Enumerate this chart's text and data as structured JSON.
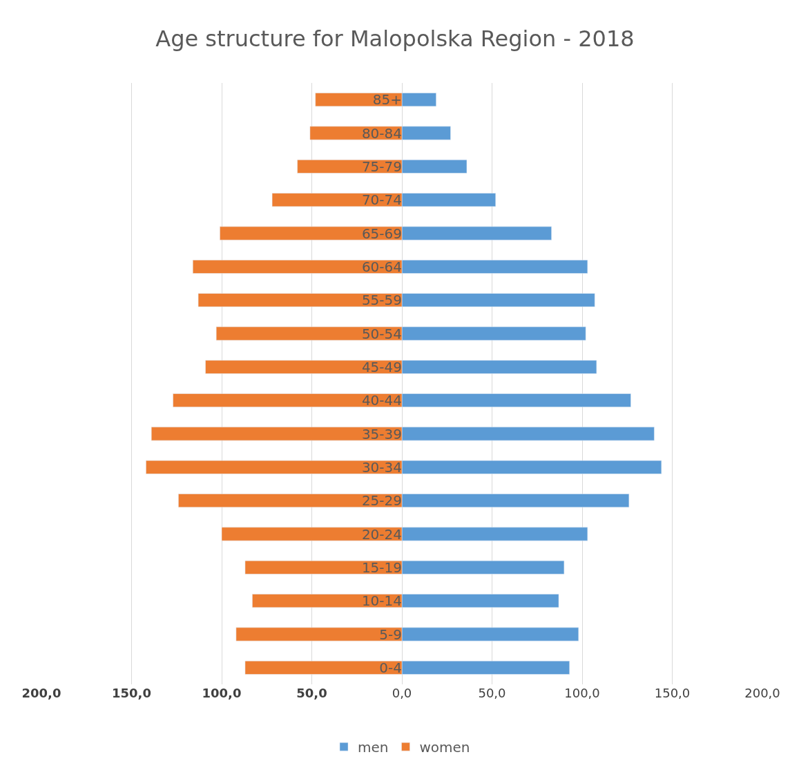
{
  "chart_data": {
    "type": "bar",
    "orientation": "horizontal",
    "title": "Age structure for Malopolska Region - 2018",
    "categories": [
      "85+",
      "80-84",
      "75-79",
      "70-74",
      "65-69",
      "60-64",
      "55-59",
      "50-54",
      "45-49",
      "40-44",
      "35-39",
      "30-34",
      "25-29",
      "20-24",
      "15-19",
      "10-14",
      "5-9",
      "0-4"
    ],
    "series": [
      {
        "name": "men",
        "color": "#5b9bd5",
        "values": [
          19,
          27,
          36,
          52,
          83,
          103,
          107,
          102,
          108,
          127,
          140,
          144,
          126,
          103,
          90,
          87,
          98,
          93
        ]
      },
      {
        "name": "women",
        "color": "#ed7d31",
        "values": [
          -48,
          -51,
          -58,
          -72,
          -101,
          -116,
          -113,
          -103,
          -109,
          -127,
          -139,
          -142,
          -124,
          -100,
          -87,
          -83,
          -92,
          -87
        ]
      }
    ],
    "xlim": [
      -200,
      200
    ],
    "xticks": [
      {
        "value": -200,
        "label": "200,0"
      },
      {
        "value": -150,
        "label": "150,0"
      },
      {
        "value": -100,
        "label": "100,0"
      },
      {
        "value": -50,
        "label": "50,0"
      },
      {
        "value": 0,
        "label": "0,0"
      },
      {
        "value": 50,
        "label": "50,0"
      },
      {
        "value": 100,
        "label": "100,0"
      },
      {
        "value": 150,
        "label": "150,0"
      },
      {
        "value": 200,
        "label": "200,0"
      }
    ],
    "grid": "x",
    "legend": "bottom",
    "stacked": true
  }
}
